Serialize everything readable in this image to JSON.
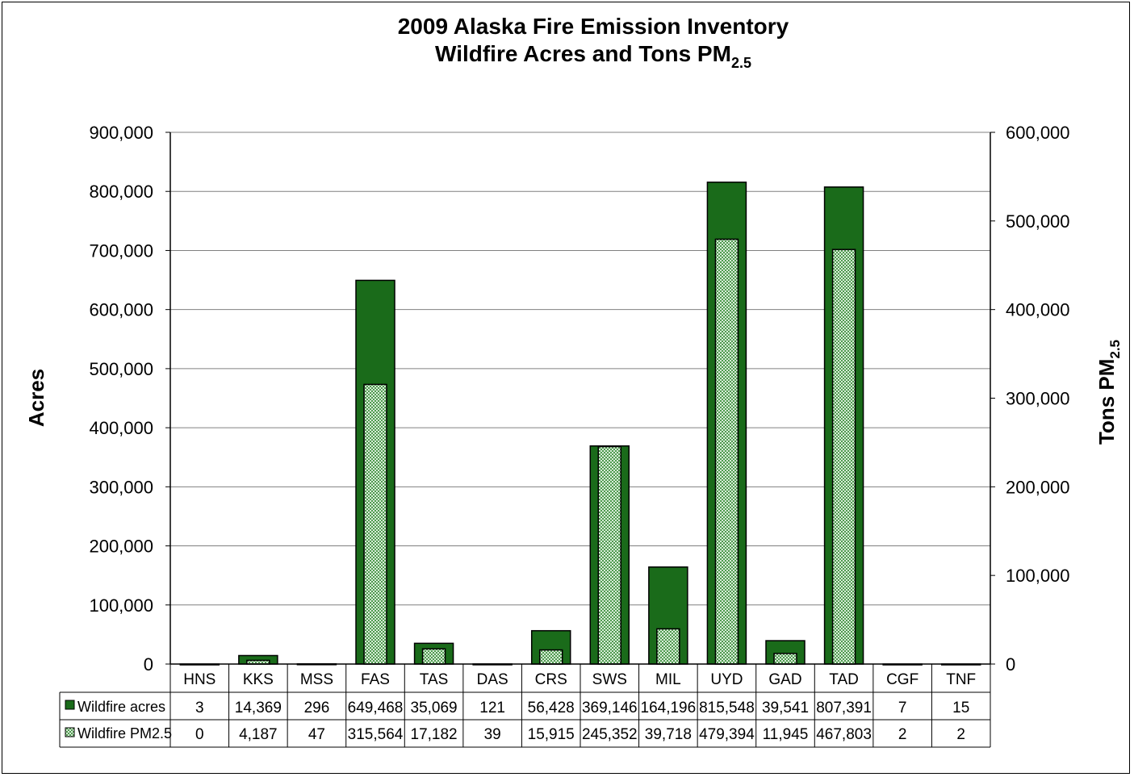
{
  "chart_data": {
    "type": "bar",
    "title": "2009 Alaska Fire Emission Inventory",
    "subtitle": "Wildfire Acres and Tons PM",
    "subtitle_sub": "2.5",
    "ylabel": "Acres",
    "y2label": "Tons PM",
    "y2label_sub": "2.5",
    "ylim": [
      0,
      900000
    ],
    "y2lim": [
      0,
      600000
    ],
    "yticks": [
      "0",
      "100,000",
      "200,000",
      "300,000",
      "400,000",
      "500,000",
      "600,000",
      "700,000",
      "800,000",
      "900,000"
    ],
    "y2ticks": [
      "0",
      "100,000",
      "200,000",
      "300,000",
      "400,000",
      "500,000",
      "600,000"
    ],
    "grid": true,
    "legend_placement": "data-table",
    "categories": [
      "HNS",
      "KKS",
      "MSS",
      "FAS",
      "TAS",
      "DAS",
      "CRS",
      "SWS",
      "MIL",
      "UYD",
      "GAD",
      "TAD",
      "CGF",
      "TNF"
    ],
    "series": [
      {
        "name": "Wildfire acres",
        "axis": "left",
        "color": "#1a6b1a",
        "values": [
          3,
          14369,
          296,
          649468,
          35069,
          121,
          56428,
          369146,
          164196,
          815548,
          39541,
          807391,
          7,
          15
        ],
        "labels": [
          "3",
          "14,369",
          "296",
          "649,468",
          "35,069",
          "121",
          "56,428",
          "369,146",
          "164,196",
          "815,548",
          "39,541",
          "807,391",
          "7",
          "15"
        ]
      },
      {
        "name": "Wildfire PM2.5",
        "axis": "right",
        "color": "#a8d4a8",
        "values": [
          0,
          4187,
          47,
          315564,
          17182,
          39,
          15915,
          245352,
          39718,
          479394,
          11945,
          467803,
          2,
          2
        ],
        "labels": [
          "0",
          "4,187",
          "47",
          "315,564",
          "17,182",
          "39",
          "15,915",
          "245,352",
          "39,718",
          "479,394",
          "11,945",
          "467,803",
          "2",
          "2"
        ]
      }
    ]
  }
}
